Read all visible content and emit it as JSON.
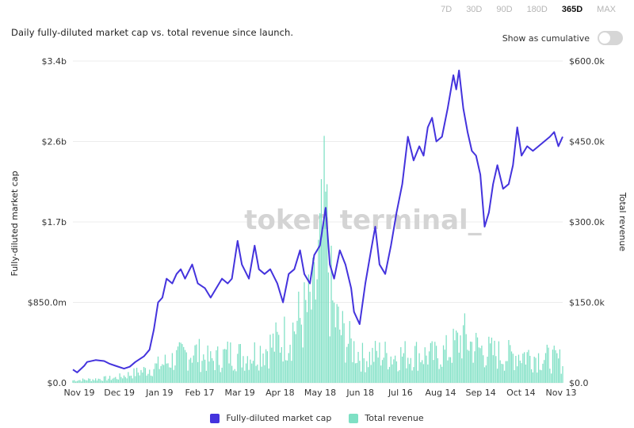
{
  "range_options": [
    "7D",
    "30D",
    "90D",
    "180D",
    "365D",
    "MAX"
  ],
  "selected_range": "365D",
  "subtitle": "Daily fully-diluted market cap vs. total revenue since launch.",
  "cumulative_label": "Show as cumulative",
  "cumulative_on": false,
  "watermark": "token terminal_",
  "colors": {
    "market_cap": "#4433dd",
    "revenue": "#7ee0c4",
    "grid": "#ececec"
  },
  "chart_data": {
    "type": "line",
    "xlabel": "",
    "y_left": {
      "label": "Fully-diluted market cap",
      "ticks": [
        "$0.0",
        "$850.0m",
        "$1.7b",
        "$2.6b",
        "$3.4b"
      ],
      "range": [
        0,
        3400
      ]
    },
    "y_right": {
      "label": "Total revenue",
      "ticks": [
        "$0.0",
        "$150.0k",
        "$300.0k",
        "$450.0k",
        "$600.0k"
      ],
      "range": [
        0,
        600
      ]
    },
    "x_ticks": [
      "Nov 19",
      "Dec 19",
      "Jan 19",
      "Feb 17",
      "Mar 19",
      "Apr 18",
      "May 18",
      "Jun 18",
      "Jul 16",
      "Aug 14",
      "Sep 14",
      "Oct 14",
      "Nov 13"
    ],
    "grid": true,
    "legend_position": "bottom",
    "series": [
      {
        "name": "Fully-diluted market cap",
        "kind": "line",
        "unit": "$m",
        "values": [
          [
            0,
            140
          ],
          [
            3,
            110
          ],
          [
            8,
            180
          ],
          [
            10,
            220
          ],
          [
            16,
            240
          ],
          [
            22,
            230
          ],
          [
            26,
            200
          ],
          [
            30,
            180
          ],
          [
            36,
            150
          ],
          [
            40,
            170
          ],
          [
            44,
            220
          ],
          [
            50,
            280
          ],
          [
            54,
            350
          ],
          [
            57,
            560
          ],
          [
            60,
            850
          ],
          [
            63,
            900
          ],
          [
            66,
            1100
          ],
          [
            70,
            1050
          ],
          [
            73,
            1150
          ],
          [
            76,
            1200
          ],
          [
            79,
            1100
          ],
          [
            84,
            1250
          ],
          [
            88,
            1050
          ],
          [
            93,
            1000
          ],
          [
            97,
            900
          ],
          [
            101,
            1000
          ],
          [
            105,
            1100
          ],
          [
            109,
            1050
          ],
          [
            112,
            1100
          ],
          [
            116,
            1500
          ],
          [
            119,
            1250
          ],
          [
            124,
            1100
          ],
          [
            128,
            1450
          ],
          [
            131,
            1200
          ],
          [
            135,
            1150
          ],
          [
            139,
            1200
          ],
          [
            144,
            1050
          ],
          [
            148,
            850
          ],
          [
            152,
            1150
          ],
          [
            156,
            1200
          ],
          [
            160,
            1400
          ],
          [
            163,
            1150
          ],
          [
            167,
            1050
          ],
          [
            170,
            1350
          ],
          [
            174,
            1450
          ],
          [
            178,
            1850
          ],
          [
            181,
            1250
          ],
          [
            184,
            1100
          ],
          [
            188,
            1400
          ],
          [
            192,
            1250
          ],
          [
            196,
            1000
          ],
          [
            198,
            750
          ],
          [
            202,
            620
          ],
          [
            206,
            1050
          ],
          [
            210,
            1400
          ],
          [
            213,
            1650
          ],
          [
            216,
            1250
          ],
          [
            220,
            1150
          ],
          [
            224,
            1450
          ],
          [
            228,
            1800
          ],
          [
            232,
            2100
          ],
          [
            236,
            2600
          ],
          [
            240,
            2350
          ],
          [
            244,
            2500
          ],
          [
            247,
            2400
          ],
          [
            250,
            2700
          ],
          [
            253,
            2800
          ],
          [
            256,
            2550
          ],
          [
            260,
            2600
          ],
          [
            264,
            2900
          ],
          [
            268,
            3250
          ],
          [
            270,
            3100
          ],
          [
            272,
            3300
          ],
          [
            275,
            2900
          ],
          [
            278,
            2650
          ],
          [
            281,
            2450
          ],
          [
            284,
            2400
          ],
          [
            287,
            2200
          ],
          [
            290,
            1650
          ],
          [
            293,
            1800
          ],
          [
            296,
            2100
          ],
          [
            299,
            2300
          ],
          [
            303,
            2050
          ],
          [
            307,
            2100
          ],
          [
            310,
            2300
          ],
          [
            313,
            2700
          ],
          [
            316,
            2400
          ],
          [
            320,
            2500
          ],
          [
            324,
            2450
          ],
          [
            328,
            2500
          ],
          [
            332,
            2550
          ],
          [
            336,
            2600
          ],
          [
            339,
            2650
          ],
          [
            342,
            2500
          ],
          [
            345,
            2600
          ]
        ]
      },
      {
        "name": "Total revenue",
        "kind": "bar",
        "unit": "$k",
        "values": [
          [
            0,
            5
          ],
          [
            30,
            10
          ],
          [
            50,
            25
          ],
          [
            60,
            35
          ],
          [
            72,
            50
          ],
          [
            85,
            65
          ],
          [
            97,
            45
          ],
          [
            110,
            60
          ],
          [
            122,
            55
          ],
          [
            135,
            70
          ],
          [
            145,
            85
          ],
          [
            152,
            100
          ],
          [
            160,
            130
          ],
          [
            166,
            150
          ],
          [
            170,
            170
          ],
          [
            174,
            260
          ],
          [
            178,
            340
          ],
          [
            181,
            200
          ],
          [
            184,
            140
          ],
          [
            188,
            110
          ],
          [
            195,
            80
          ],
          [
            205,
            50
          ],
          [
            215,
            60
          ],
          [
            225,
            55
          ],
          [
            240,
            60
          ],
          [
            255,
            55
          ],
          [
            265,
            65
          ],
          [
            275,
            95
          ],
          [
            280,
            80
          ],
          [
            290,
            65
          ],
          [
            305,
            55
          ],
          [
            315,
            60
          ],
          [
            325,
            55
          ],
          [
            335,
            50
          ],
          [
            345,
            45
          ]
        ]
      }
    ]
  }
}
